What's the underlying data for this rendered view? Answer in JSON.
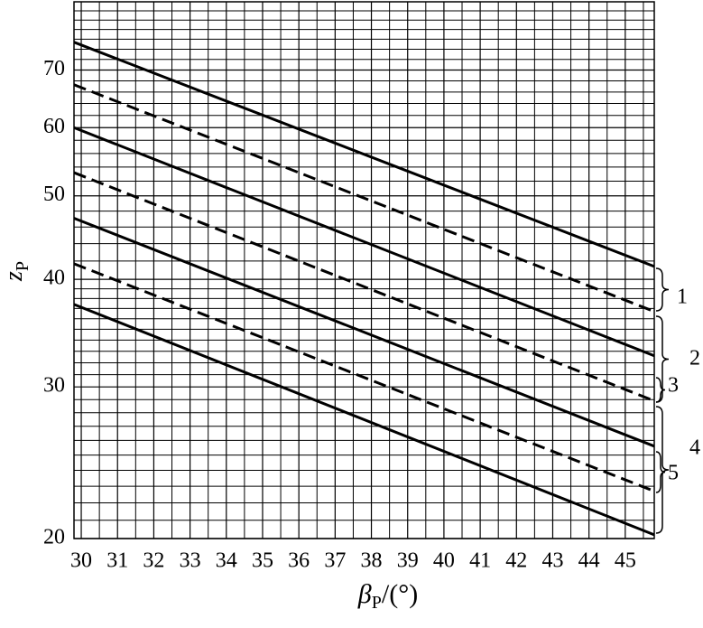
{
  "chart_data": {
    "type": "line",
    "xlabel_parts": [
      "β",
      "P",
      "/(°)"
    ],
    "ylabel_parts": [
      "z",
      "P"
    ],
    "x": [
      29.8,
      45.8
    ],
    "series": [
      {
        "color": "#000000",
        "dashed": false,
        "values": [
          75.4,
          41.4
        ]
      },
      {
        "color": "#000000",
        "dashed": true,
        "values": [
          67.3,
          36.7
        ]
      },
      {
        "color": "#000000",
        "dashed": false,
        "values": [
          60,
          32.6
        ]
      },
      {
        "color": "#000000",
        "dashed": true,
        "values": [
          53.2,
          28.9
        ]
      },
      {
        "color": "#000000",
        "dashed": false,
        "values": [
          47.1,
          25.6
        ]
      },
      {
        "color": "#000000",
        "dashed": true,
        "values": [
          41.7,
          22.7
        ]
      },
      {
        "color": "#000000",
        "dashed": false,
        "values": [
          37.4,
          20.2
        ]
      }
    ],
    "xlim": [
      29.8,
      45.8
    ],
    "xticks": [
      30,
      31,
      32,
      33,
      34,
      35,
      36,
      37,
      38,
      39,
      40,
      41,
      42,
      43,
      44,
      45
    ],
    "ylim": [
      20,
      84
    ],
    "yscale": "log",
    "yticks": [
      20,
      30,
      40,
      50,
      60,
      70
    ],
    "grid": true,
    "minor_xticks": [
      30.5,
      31.5,
      32.5,
      33.5,
      34.5,
      35.5,
      36.5,
      37.5,
      38.5,
      39.5,
      40.5,
      41.5,
      42.5,
      43.5,
      44.5,
      45.5
    ],
    "minor_yticks": [
      21,
      22,
      23,
      24,
      25,
      26,
      27,
      28,
      29,
      31,
      32,
      33,
      34,
      35,
      36,
      37,
      38,
      39,
      42,
      44,
      46,
      48,
      52,
      54,
      56,
      58,
      62,
      64,
      66,
      68,
      72,
      74,
      76,
      78,
      80,
      82
    ],
    "annotations": [
      "1",
      "2",
      "3",
      "4",
      "5"
    ]
  }
}
